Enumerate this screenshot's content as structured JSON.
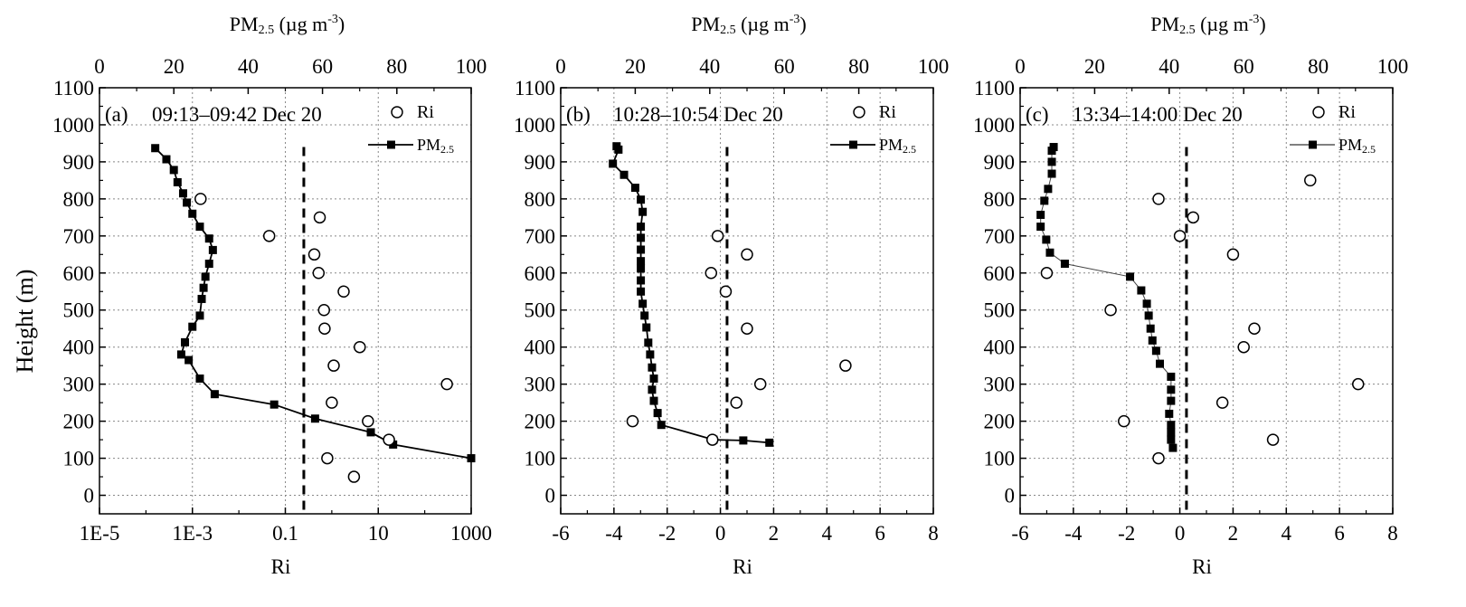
{
  "figure": {
    "y_axis_label": "Height (m)"
  },
  "chart_data": [
    {
      "type": "scatter",
      "panel_label": "(a)",
      "title": "09:13–09:42 Dec 20",
      "xlabel": "Ri",
      "x2label": "PM2.5 (µg m-3)",
      "x2label_parts": {
        "main": "PM",
        "sub": "2.5",
        "unit_open": " (µg m",
        "sup": "-3",
        "unit_close": ")"
      },
      "ylabel": "Height (m)",
      "x_scale": "log",
      "xlim": [
        1e-05,
        1000
      ],
      "x_ticks": [
        1e-05,
        0.001,
        0.1,
        10,
        1000
      ],
      "x_tick_labels": [
        "1E-5",
        "1E-3",
        "0.1",
        "10",
        "1000"
      ],
      "x2lim": [
        0,
        100
      ],
      "x2_ticks": [
        0,
        20,
        40,
        60,
        80,
        100
      ],
      "ylim": [
        -50,
        1100
      ],
      "y_ticks": [
        0,
        100,
        200,
        300,
        400,
        500,
        600,
        700,
        800,
        900,
        1000,
        1100
      ],
      "grid": true,
      "reference_ri": 0.25,
      "legend": {
        "position": "top-right",
        "ri_label": "Ri",
        "pm_label": {
          "main": "PM",
          "sub": "2.5"
        }
      },
      "series": [
        {
          "name": "Ri",
          "marker": "open-circle",
          "points": [
            [
              3.0,
              50
            ],
            [
              0.8,
              100
            ],
            [
              17,
              150
            ],
            [
              6,
              200
            ],
            [
              1.0,
              250
            ],
            [
              300,
              300
            ],
            [
              1.1,
              350
            ],
            [
              4.0,
              400
            ],
            [
              0.7,
              450
            ],
            [
              0.68,
              500
            ],
            [
              1.8,
              550
            ],
            [
              0.52,
              600
            ],
            [
              0.42,
              650
            ],
            [
              0.045,
              700
            ],
            [
              0.55,
              750
            ],
            [
              0.0015,
              800
            ]
          ]
        },
        {
          "name": "PM2.5",
          "marker": "filled-square-line",
          "points": [
            [
              100,
              100
            ],
            [
              79,
              137
            ],
            [
              73,
              170
            ],
            [
              58,
              207
            ],
            [
              47,
              245
            ],
            [
              31,
              273
            ],
            [
              27,
              315
            ],
            [
              24,
              365
            ],
            [
              22,
              380
            ],
            [
              23,
              413
            ],
            [
              25,
              455
            ],
            [
              27,
              485
            ],
            [
              27.5,
              530
            ],
            [
              28,
              560
            ],
            [
              28.5,
              590
            ],
            [
              29.5,
              625
            ],
            [
              30.5,
              662
            ],
            [
              29.5,
              693
            ],
            [
              27,
              725
            ],
            [
              25,
              760
            ],
            [
              23.5,
              790
            ],
            [
              22.5,
              815
            ],
            [
              21,
              845
            ],
            [
              20,
              878
            ],
            [
              18,
              907
            ],
            [
              15,
              937
            ]
          ]
        }
      ]
    },
    {
      "type": "scatter",
      "panel_label": "(b)",
      "title": "10:28–10:54 Dec 20",
      "xlabel": "Ri",
      "x2label": "PM2.5 (µg m-3)",
      "x2label_parts": {
        "main": "PM",
        "sub": "2.5",
        "unit_open": " (µg m",
        "sup": "-3",
        "unit_close": ")"
      },
      "ylabel": "Height (m)",
      "x_scale": "linear",
      "xlim": [
        -6,
        8
      ],
      "x_ticks": [
        -6,
        -4,
        -2,
        0,
        2,
        4,
        6,
        8
      ],
      "x_tick_labels": [
        "-6",
        "-4",
        "-2",
        "0",
        "2",
        "4",
        "6",
        "8"
      ],
      "x2lim": [
        0,
        100
      ],
      "x2_ticks": [
        0,
        20,
        40,
        60,
        80,
        100
      ],
      "ylim": [
        -50,
        1100
      ],
      "y_ticks": [
        0,
        100,
        200,
        300,
        400,
        500,
        600,
        700,
        800,
        900,
        1000,
        1100
      ],
      "grid": true,
      "reference_ri": 0.25,
      "legend": {
        "position": "top-right",
        "ri_label": "Ri",
        "pm_label": {
          "main": "PM",
          "sub": "2.5"
        }
      },
      "series": [
        {
          "name": "Ri",
          "marker": "open-circle",
          "points": [
            [
              -0.3,
              150
            ],
            [
              -3.3,
              200
            ],
            [
              0.6,
              250
            ],
            [
              1.5,
              300
            ],
            [
              4.7,
              350
            ],
            [
              1.0,
              450
            ],
            [
              0.2,
              550
            ],
            [
              -0.35,
              600
            ],
            [
              1.0,
              650
            ],
            [
              -0.1,
              700
            ]
          ]
        },
        {
          "name": "PM2.5",
          "marker": "filled-square-line",
          "points": [
            [
              56,
              142
            ],
            [
              49,
              148
            ],
            [
              41,
              150
            ],
            [
              27,
              190
            ],
            [
              26,
              222
            ],
            [
              25,
              255
            ],
            [
              24.5,
              285
            ],
            [
              25,
              315
            ],
            [
              24.5,
              345
            ],
            [
              24,
              380
            ],
            [
              23.5,
              412
            ],
            [
              23,
              453
            ],
            [
              22.5,
              485
            ],
            [
              22,
              517
            ],
            [
              21.5,
              550
            ],
            [
              21.5,
              580
            ],
            [
              21.5,
              612
            ],
            [
              21.5,
              632
            ],
            [
              21.5,
              663
            ],
            [
              21.5,
              695
            ],
            [
              21.5,
              725
            ],
            [
              22,
              765
            ],
            [
              21.5,
              798
            ],
            [
              20,
              830
            ],
            [
              17,
              865
            ],
            [
              14,
              895
            ],
            [
              15.5,
              933
            ],
            [
              15,
              942
            ]
          ]
        }
      ]
    },
    {
      "type": "scatter",
      "panel_label": "(c)",
      "title": "13:34–14:00 Dec 20",
      "xlabel": "Ri",
      "x2label": "PM2.5 (µg m-3)",
      "x2label_parts": {
        "main": "PM",
        "sub": "2.5",
        "unit_open": " (µg m",
        "sup": "-3",
        "unit_close": ")"
      },
      "ylabel": "Height (m)",
      "x_scale": "linear",
      "xlim": [
        -6,
        8
      ],
      "x_ticks": [
        -6,
        -4,
        -2,
        0,
        2,
        4,
        6,
        8
      ],
      "x_tick_labels": [
        "-6",
        "-4",
        "-2",
        "0",
        "2",
        "4",
        "6",
        "8"
      ],
      "x2lim": [
        0,
        100
      ],
      "x2_ticks": [
        0,
        20,
        40,
        60,
        80,
        100
      ],
      "ylim": [
        -50,
        1100
      ],
      "y_ticks": [
        0,
        100,
        200,
        300,
        400,
        500,
        600,
        700,
        800,
        900,
        1000,
        1100
      ],
      "grid": true,
      "reference_ri": 0.25,
      "legend": {
        "position": "top-right",
        "ri_label": "Ri",
        "pm_label": {
          "main": "PM",
          "sub": "2.5"
        }
      },
      "series": [
        {
          "name": "Ri",
          "marker": "open-circle",
          "points": [
            [
              -0.8,
              100
            ],
            [
              3.5,
              150
            ],
            [
              -2.1,
              200
            ],
            [
              1.6,
              250
            ],
            [
              6.7,
              300
            ],
            [
              2.4,
              400
            ],
            [
              2.8,
              450
            ],
            [
              -2.6,
              500
            ],
            [
              -5.0,
              600
            ],
            [
              2.0,
              650
            ],
            [
              0.0,
              700
            ],
            [
              0.5,
              750
            ],
            [
              -0.8,
              800
            ],
            [
              4.9,
              850
            ]
          ]
        },
        {
          "name": "PM2.5",
          "marker": "filled-square-line",
          "points": [
            [
              41,
              128
            ],
            [
              40.5,
              150
            ],
            [
              40.5,
              170
            ],
            [
              40.5,
              190
            ],
            [
              40,
              220
            ],
            [
              40.5,
              255
            ],
            [
              40.5,
              285
            ],
            [
              40.5,
              320
            ],
            [
              37.5,
              355
            ],
            [
              36.5,
              390
            ],
            [
              35.5,
              418
            ],
            [
              35,
              450
            ],
            [
              34.5,
              485
            ],
            [
              34,
              517
            ],
            [
              32.5,
              553
            ],
            [
              29.5,
              590
            ],
            [
              12,
              625
            ],
            [
              8,
              655
            ],
            [
              7,
              690
            ],
            [
              5.5,
              725
            ],
            [
              5.5,
              757
            ],
            [
              6.5,
              795
            ],
            [
              7.5,
              827
            ],
            [
              8.5,
              868
            ],
            [
              8.5,
              900
            ],
            [
              8.5,
              930
            ],
            [
              9,
              940
            ]
          ]
        }
      ]
    }
  ]
}
